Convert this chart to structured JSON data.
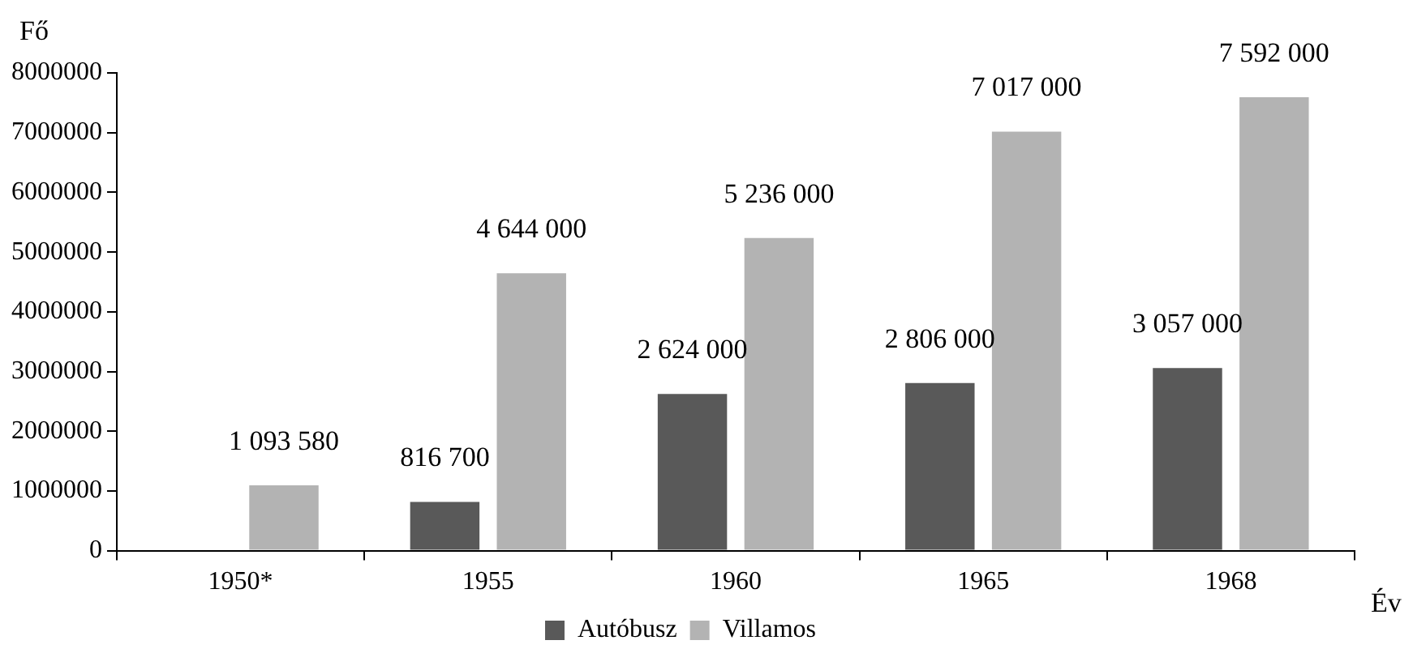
{
  "chart_data": {
    "type": "bar",
    "ylabel": "Fő",
    "xlabel": "Év",
    "categories": [
      "1950*",
      "1955",
      "1960",
      "1965",
      "1968"
    ],
    "series": [
      {
        "name": "Autóbusz",
        "color": "#595959",
        "values": [
          null,
          816700,
          2624000,
          2806000,
          3057000
        ],
        "value_labels": [
          null,
          "816 700",
          "2 624 000",
          "2 806 000",
          "3 057 000"
        ]
      },
      {
        "name": "Villamos",
        "color": "#b3b3b3",
        "values": [
          1093580,
          4644000,
          5236000,
          7017000,
          7592000
        ],
        "value_labels": [
          "1 093 580",
          "4 644 000",
          "5 236 000",
          "7 017 000",
          "7 592 000"
        ]
      }
    ],
    "ylim": [
      0,
      8000000
    ],
    "yticks": [
      0,
      1000000,
      2000000,
      3000000,
      4000000,
      5000000,
      6000000,
      7000000,
      8000000
    ],
    "legend": "bottom"
  }
}
